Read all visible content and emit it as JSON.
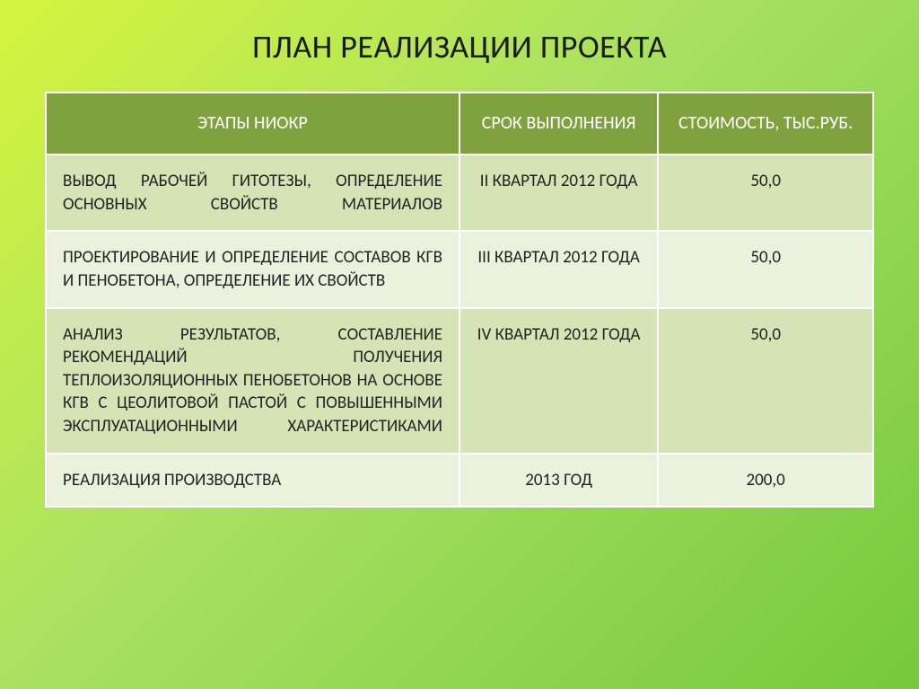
{
  "title": "ПЛАН РЕАЛИЗАЦИИ ПРОЕКТА",
  "columns": [
    "ЭТАПЫ НИОКР",
    "СРОК ВЫПОЛНЕНИЯ",
    "СТОИМОСТЬ, ТЫС.РУБ."
  ],
  "colors": {
    "header_bg": "#7fa23e",
    "header_text": "#ffffff",
    "row_odd_bg": "#d6e3b5",
    "row_even_bg": "#ecf1dd",
    "border": "#ffffff",
    "title_text": "#1a1a1a",
    "cell_text": "#222222",
    "page_gradient": [
      "#d4f53d",
      "#a8e063",
      "#76c93a"
    ]
  },
  "typography": {
    "title_fontsize": 36,
    "header_fontsize": 20,
    "cell_fontsize": 19,
    "font_family": "Calibri, Arial, sans-serif"
  },
  "rows": [
    {
      "stage": "ВЫВОД РАБОЧЕЙ ГИТОТЕЗЫ, ОПРЕДЕЛЕНИЕ ОСНОВНЫХ  СВОЙСТВ МАТЕРИАЛОВ",
      "term": "II КВАРТАЛ 2012 ГОДА",
      "cost": "50,0",
      "justify": true
    },
    {
      "stage": "ПРОЕКТИРОВАНИЕ И ОПРЕДЕЛЕНИЕ СОСТАВОВ КГВ И ПЕНОБЕТОНА, ОПРЕДЕЛЕНИЕ ИХ СВОЙСТВ",
      "term": "III КВАРТАЛ 2012 ГОДА",
      "cost": "50,0",
      "justify": false
    },
    {
      "stage": "АНАЛИЗ РЕЗУЛЬТАТОВ, СОСТАВЛЕНИЕ РЕКОМЕНДАЦИЙ ПОЛУЧЕНИЯ ТЕПЛОИЗОЛЯЦИОННЫХ ПЕНОБЕТОНОВ НА ОСНОВЕ КГВ С ЦЕОЛИТОВОЙ ПАСТОЙ С ПОВЫШЕННЫМИ ЭКСПЛУАТАЦИОННЫМИ ХАРАКТЕРИСТИКАМИ",
      "term": "IV КВАРТАЛ 2012 ГОДА",
      "cost": "50,0",
      "justify": true
    },
    {
      "stage": "РЕАЛИЗАЦИЯ ПРОИЗВОДСТВА",
      "term": "2013 ГОД",
      "cost": "200,0",
      "justify": false
    }
  ]
}
